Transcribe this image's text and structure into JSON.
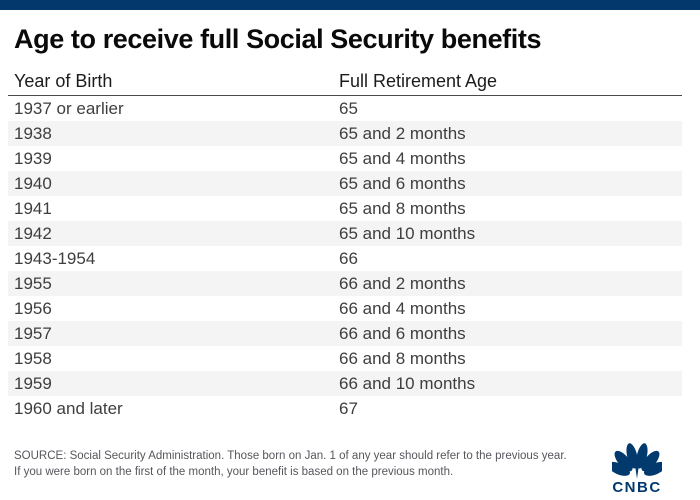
{
  "title": "Age to receive full Social Security benefits",
  "chart_data": {
    "type": "table",
    "title": "Age to receive full Social Security benefits",
    "columns": [
      "Year of Birth",
      "Full Retirement Age"
    ],
    "rows": [
      [
        "1937 or earlier",
        "65"
      ],
      [
        "1938",
        "65 and 2 months"
      ],
      [
        "1939",
        "65 and 4 months"
      ],
      [
        "1940",
        "65 and 6 months"
      ],
      [
        "1941",
        "65 and 8 months"
      ],
      [
        "1942",
        "65 and 10 months"
      ],
      [
        "1943-1954",
        "66"
      ],
      [
        "1955",
        "66 and 2 months"
      ],
      [
        "1956",
        "66 and 4 months"
      ],
      [
        "1957",
        "66 and 6 months"
      ],
      [
        "1958",
        "66 and 8 months"
      ],
      [
        "1959",
        "66 and 10 months"
      ],
      [
        "1960 and later",
        "67"
      ]
    ],
    "layout_hints": {
      "striped_rows": true,
      "stripe_starts_on_second_row": true,
      "header_rule": true
    }
  },
  "footer": {
    "line1": "SOURCE: Social Security Administration. Those born on Jan. 1 of any year should refer to the previous year.",
    "line2": "If you were born on the first of the month, your benefit is based on the previous month.",
    "logo_text": "CNBC"
  },
  "icons": {
    "logo_icon": "peacock-icon"
  },
  "colors": {
    "top_bar": "#02386B",
    "title_text": "#0A0A0A",
    "header_text": "#1C1C1C",
    "header_rule": "#4A4A4A",
    "row_text": "#3E3E3E",
    "alt_row_background": "#F4F4F4",
    "footer_text": "#55575C",
    "logo_navy": "#023A6E"
  }
}
